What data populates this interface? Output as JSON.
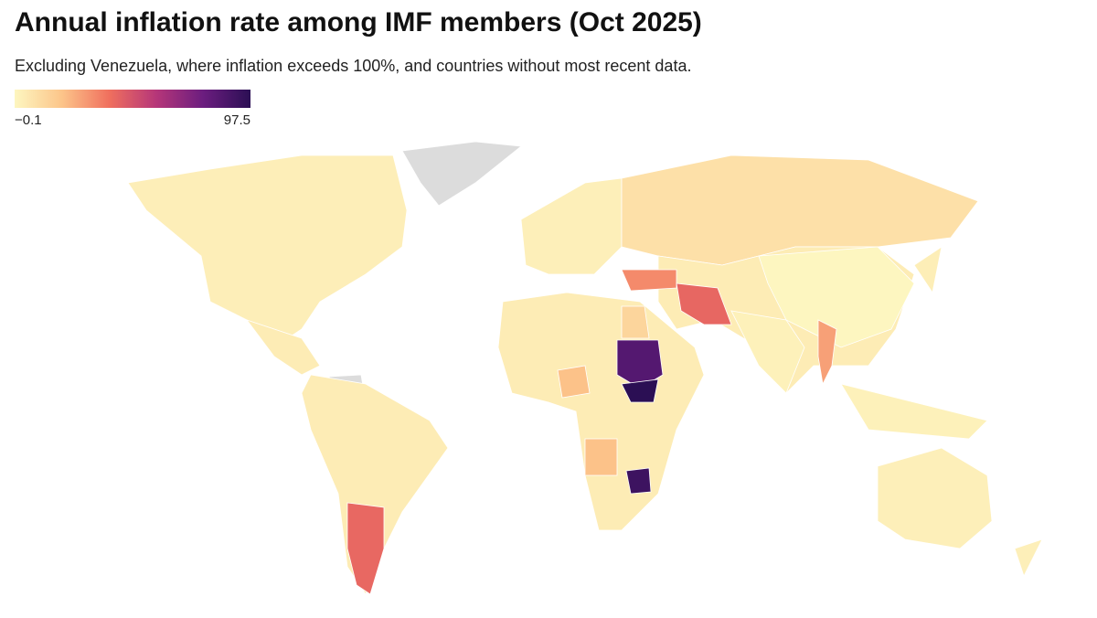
{
  "map": {
    "type": "choropleth",
    "title": "Annual inflation rate among IMF members (Oct 2025)",
    "subtitle": "Excluding Venezuela, where inflation exceeds 100%, and countries without most recent data.",
    "scale": {
      "ticks": [
        {
          "value": -0.1,
          "label": "−0.1"
        },
        97.5
      ],
      "colors": [
        "#fdf6c0",
        "#fcc58a",
        "#f0705e",
        "#b63679",
        "#6b1d7f",
        "#2b0f54"
      ]
    },
    "no_data_color": "#dcdcdc",
    "regions": [
      {
        "value": 2.9
      },
      {
        "value": 4
      },
      {
        "value": 4
      },
      {
        "value": 41.7
      },
      {
        "value": 2.5
      },
      {
        "value": 8.5
      },
      {
        "value": 4
      },
      {
        "value": 13
      },
      {
        "value": 85
      },
      {
        "value": 97.5
      },
      {
        "value": 20
      },
      {
        "value": 20
      },
      {
        "value": 92
      },
      {
        "value": 4
      },
      {
        "value": 33
      },
      {
        "value": 42
      },
      {
        "value": -0.1
      },
      {
        "value": 2
      },
      {
        "value": 28
      },
      {
        "value": 2
      },
      {
        "value": 2.5
      },
      {
        "value": 2.5
      },
      {
        "value": 3
      }
    ]
  }
}
